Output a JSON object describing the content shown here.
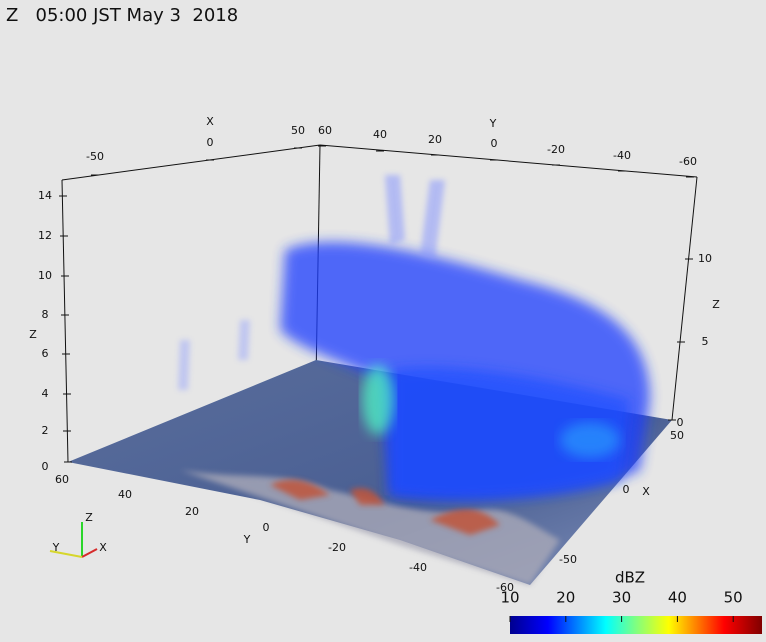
{
  "title": "Z   05:00 JST May 3  2018",
  "axes": {
    "top_x": {
      "name": "X",
      "ticks": [
        "-50",
        "0",
        "50"
      ]
    },
    "top_y": {
      "name": "Y",
      "ticks": [
        "60",
        "40",
        "20",
        "0",
        "-20",
        "-40",
        "-60"
      ]
    },
    "left_z": {
      "name": "Z",
      "ticks": [
        "14",
        "12",
        "10",
        "8",
        "6",
        "4",
        "2",
        "0"
      ]
    },
    "right_z": {
      "name": "Z",
      "ticks": [
        "10",
        "5",
        "0"
      ]
    },
    "bottom_y": {
      "name": "Y",
      "ticks": [
        "60",
        "40",
        "20",
        "0",
        "-20",
        "-40",
        "-60"
      ]
    },
    "right_x": {
      "name": "X",
      "ticks": [
        "50",
        "0",
        "-50"
      ]
    }
  },
  "orientation": {
    "x": "X",
    "y": "Y",
    "z": "Z"
  },
  "colorbar": {
    "title": "dBZ",
    "ticks": [
      "10",
      "20",
      "30",
      "40",
      "50"
    ]
  }
}
